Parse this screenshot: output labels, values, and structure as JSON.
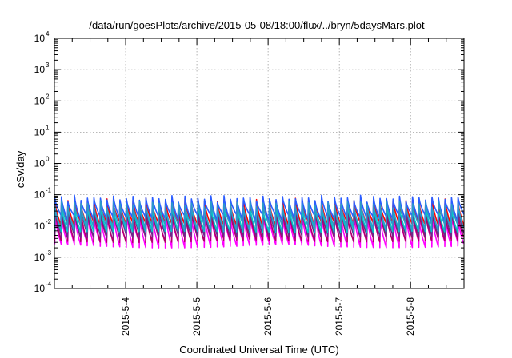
{
  "chart_data": {
    "type": "line",
    "title": "/data/run/goesPlots/archive/2015-05-08/18:00/flux/../bryn/5daysMars.plot",
    "xlabel": "Coordinated Universal Time (UTC)",
    "ylabel": "cSv/day",
    "yscale": "log",
    "ylim": [
      0.0001,
      10000
    ],
    "xlim": [
      "2015-05-03 00:00",
      "2015-05-08 18:00"
    ],
    "y_ticks": [
      {
        "base": "10",
        "exp": "-4"
      },
      {
        "base": "10",
        "exp": "-3"
      },
      {
        "base": "10",
        "exp": "-2"
      },
      {
        "base": "10",
        "exp": "-1"
      },
      {
        "base": "10",
        "exp": "0"
      },
      {
        "base": "10",
        "exp": "1"
      },
      {
        "base": "10",
        "exp": "2"
      },
      {
        "base": "10",
        "exp": "3"
      },
      {
        "base": "10",
        "exp": "4"
      }
    ],
    "x_ticks": [
      {
        "label": "2015-5-4",
        "date": "2015-05-04"
      },
      {
        "label": "2015-5-5",
        "date": "2015-05-05"
      },
      {
        "label": "2015-5-6",
        "date": "2015-05-06"
      },
      {
        "label": "2015-5-7",
        "date": "2015-05-07"
      },
      {
        "label": "2015-5-8",
        "date": "2015-05-08"
      }
    ],
    "grid": true,
    "legend": "none",
    "orbits_per_day": 11,
    "series": [
      {
        "color": "#ff00ff",
        "peak": 0.02,
        "trough": 0.0025,
        "phase": 0.05
      },
      {
        "color": "#b0006a",
        "peak": 0.028,
        "trough": 0.0035,
        "phase": 0.03
      },
      {
        "color": "#6a2a8a",
        "peak": 0.035,
        "trough": 0.0045,
        "phase": 0.06
      },
      {
        "color": "#00c8c8",
        "peak": 0.045,
        "trough": 0.0065,
        "phase": 0.02
      },
      {
        "color": "#ff0000",
        "peak": 0.06,
        "trough": 0.012,
        "phase": 0.0
      },
      {
        "color": "#2a5cff",
        "peak": 0.075,
        "trough": 0.018,
        "phase": 0.0
      },
      {
        "color": "#2b9acb",
        "peak": 0.05,
        "trough": 0.009,
        "phase": 0.01
      }
    ]
  }
}
